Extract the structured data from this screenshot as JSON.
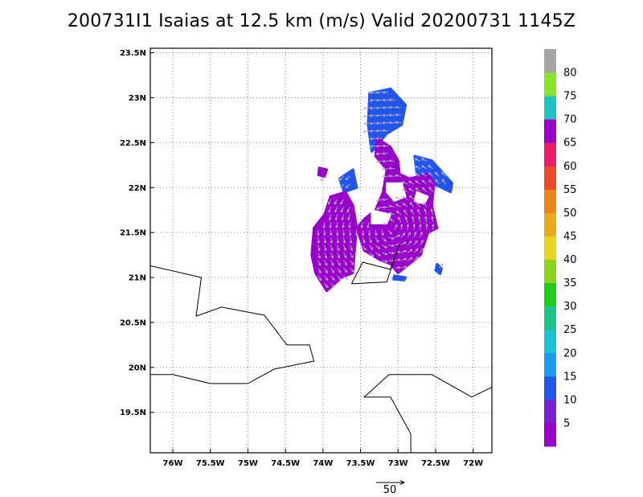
{
  "title": "200731I1 Isaias at 12.5 km (m/s) Valid 20200731 1145Z",
  "map": {
    "lon_range": [
      -76.3,
      -71.75
    ],
    "lat_range": [
      19.05,
      23.55
    ],
    "grid": "dotted",
    "lon_ticks": [
      {
        "value": -76.0,
        "label": "76W"
      },
      {
        "value": -75.5,
        "label": "75.5W"
      },
      {
        "value": -75.0,
        "label": "75W"
      },
      {
        "value": -74.5,
        "label": "74.5W"
      },
      {
        "value": -74.0,
        "label": "74W"
      },
      {
        "value": -73.5,
        "label": "73.5W"
      },
      {
        "value": -73.0,
        "label": "73W"
      },
      {
        "value": -72.5,
        "label": "72.5W"
      },
      {
        "value": -72.0,
        "label": "72W"
      }
    ],
    "lat_ticks": [
      {
        "value": 19.5,
        "label": "19.5N"
      },
      {
        "value": 20.0,
        "label": "20N"
      },
      {
        "value": 20.5,
        "label": "20.5N"
      },
      {
        "value": 21.0,
        "label": "21N"
      },
      {
        "value": 21.5,
        "label": "21.5N"
      },
      {
        "value": 22.0,
        "label": "22N"
      },
      {
        "value": 22.5,
        "label": "22.5N"
      },
      {
        "value": 23.0,
        "label": "23N"
      },
      {
        "value": 23.5,
        "label": "23.5N"
      }
    ],
    "coastlines": [
      [
        [
          -76.3,
          21.13
        ],
        [
          -75.62,
          21.0
        ],
        [
          -75.69,
          20.57
        ],
        [
          -75.35,
          20.67
        ],
        [
          -74.78,
          20.58
        ],
        [
          -74.48,
          20.25
        ],
        [
          -74.18,
          20.25
        ],
        [
          -74.12,
          20.07
        ],
        [
          -74.65,
          19.98
        ],
        [
          -75.0,
          19.82
        ],
        [
          -75.5,
          19.82
        ],
        [
          -76.0,
          19.92
        ],
        [
          -76.3,
          19.92
        ]
      ],
      [
        [
          -73.62,
          20.93
        ],
        [
          -73.47,
          21.17
        ],
        [
          -73.1,
          21.09
        ],
        [
          -72.98,
          21.38
        ],
        [
          -73.15,
          20.95
        ],
        [
          -73.62,
          20.93
        ]
      ],
      [
        [
          -71.75,
          19.78
        ],
        [
          -72.02,
          19.67
        ],
        [
          -72.55,
          19.92
        ],
        [
          -73.12,
          19.92
        ],
        [
          -73.45,
          19.67
        ],
        [
          -73.1,
          19.67
        ],
        [
          -72.83,
          19.26
        ],
        [
          -72.83,
          19.05
        ]
      ]
    ],
    "wind_regions": [
      {
        "level": 10,
        "color": "#2255ee",
        "polygon": [
          [
            -73.38,
            23.05
          ],
          [
            -73.1,
            23.1
          ],
          [
            -72.9,
            22.92
          ],
          [
            -72.95,
            22.7
          ],
          [
            -73.15,
            22.6
          ],
          [
            -73.35,
            22.4
          ],
          [
            -73.4,
            22.7
          ]
        ]
      },
      {
        "level": 10,
        "color": "#2255ee",
        "polygon": [
          [
            -72.78,
            22.35
          ],
          [
            -72.55,
            22.3
          ],
          [
            -72.28,
            22.05
          ],
          [
            -72.3,
            21.95
          ],
          [
            -72.55,
            22.05
          ],
          [
            -72.75,
            22.15
          ]
        ]
      },
      {
        "level": 10,
        "color": "#2255ee",
        "polygon": [
          [
            -73.78,
            22.1
          ],
          [
            -73.6,
            22.2
          ],
          [
            -73.55,
            22.0
          ],
          [
            -73.72,
            21.95
          ]
        ]
      },
      {
        "level": 5,
        "color": "#9900cc",
        "polygon": [
          [
            -73.28,
            22.55
          ],
          [
            -73.1,
            22.45
          ],
          [
            -73.0,
            22.3
          ],
          [
            -72.98,
            22.15
          ],
          [
            -72.85,
            22.1
          ],
          [
            -72.6,
            22.15
          ],
          [
            -72.52,
            22.05
          ],
          [
            -72.55,
            21.8
          ],
          [
            -72.48,
            21.55
          ],
          [
            -72.6,
            21.5
          ],
          [
            -72.7,
            21.25
          ],
          [
            -72.85,
            21.15
          ],
          [
            -73.0,
            21.05
          ],
          [
            -73.1,
            21.15
          ],
          [
            -73.25,
            21.2
          ],
          [
            -73.45,
            21.3
          ],
          [
            -73.55,
            21.55
          ],
          [
            -73.45,
            21.65
          ],
          [
            -73.3,
            21.75
          ],
          [
            -73.2,
            21.95
          ],
          [
            -73.15,
            22.2
          ],
          [
            -73.3,
            22.35
          ]
        ]
      },
      {
        "level": 5,
        "color": "#9900cc",
        "polygon": [
          [
            -73.9,
            21.9
          ],
          [
            -73.7,
            21.95
          ],
          [
            -73.6,
            21.8
          ],
          [
            -73.55,
            21.55
          ],
          [
            -73.58,
            21.3
          ],
          [
            -73.6,
            21.05
          ],
          [
            -73.75,
            21.0
          ],
          [
            -73.95,
            20.85
          ],
          [
            -74.1,
            21.05
          ],
          [
            -74.15,
            21.25
          ],
          [
            -74.12,
            21.55
          ],
          [
            -73.98,
            21.7
          ]
        ]
      },
      {
        "level": 5,
        "color": "#9900cc",
        "polygon": [
          [
            -74.05,
            22.22
          ],
          [
            -73.95,
            22.2
          ],
          [
            -73.98,
            22.12
          ],
          [
            -74.06,
            22.14
          ]
        ]
      },
      {
        "level": 10,
        "color": "#2255ee",
        "polygon": [
          [
            -72.48,
            21.15
          ],
          [
            -72.42,
            21.1
          ],
          [
            -72.44,
            21.04
          ],
          [
            -72.5,
            21.08
          ]
        ]
      },
      {
        "level": 10,
        "color": "#2255ee",
        "polygon": [
          [
            -73.05,
            21.02
          ],
          [
            -72.9,
            21.0
          ],
          [
            -72.92,
            20.97
          ],
          [
            -73.06,
            20.98
          ]
        ]
      }
    ],
    "clear_regions": [
      [
        [
          -73.15,
          22.05
        ],
        [
          -72.95,
          22.05
        ],
        [
          -72.9,
          21.9
        ],
        [
          -73.05,
          21.85
        ],
        [
          -73.15,
          21.95
        ]
      ],
      [
        [
          -73.5,
          21.95
        ],
        [
          -73.38,
          21.9
        ],
        [
          -73.42,
          21.8
        ],
        [
          -73.52,
          21.85
        ]
      ],
      [
        [
          -73.35,
          21.75
        ],
        [
          -73.1,
          21.7
        ],
        [
          -73.15,
          21.6
        ],
        [
          -73.35,
          21.6
        ]
      ],
      [
        [
          -72.75,
          21.95
        ],
        [
          -72.6,
          21.9
        ],
        [
          -72.65,
          21.82
        ],
        [
          -72.78,
          21.85
        ]
      ]
    ]
  },
  "vector_key": {
    "label": "50"
  },
  "colorbar": {
    "labels": [
      "5",
      "10",
      "15",
      "20",
      "25",
      "30",
      "35",
      "40",
      "45",
      "50",
      "55",
      "60",
      "65",
      "70",
      "75",
      "80"
    ],
    "colors": [
      "#9900cc",
      "#7a1fd6",
      "#2255ee",
      "#1a9bf0",
      "#19c3d6",
      "#1ec48e",
      "#1ecc1e",
      "#8ad41a",
      "#e6d51a",
      "#e6aa1a",
      "#ec8418",
      "#ee4a2a",
      "#ee1a6a",
      "#9900cc",
      "#1ec4c4",
      "#88e62a",
      "#a5a5a5"
    ]
  }
}
